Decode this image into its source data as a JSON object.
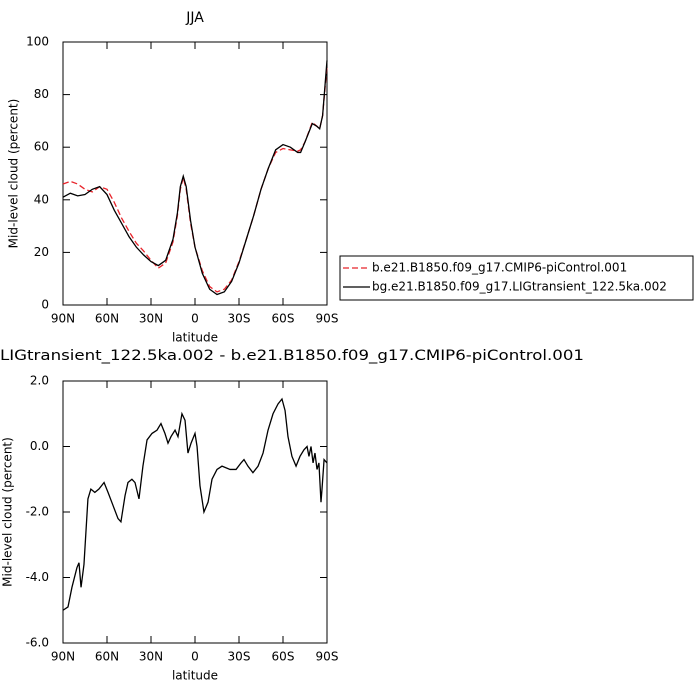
{
  "chart_data": [
    {
      "type": "line",
      "title": "JJA",
      "xlabel": "latitude",
      "ylabel": "Mid-level cloud (percent)",
      "x": [
        90,
        85,
        80,
        75,
        70,
        65,
        60,
        55,
        50,
        45,
        40,
        35,
        30,
        25,
        20,
        15,
        12,
        10,
        8,
        6,
        3,
        0,
        -5,
        -10,
        -15,
        -20,
        -25,
        -30,
        -35,
        -40,
        -45,
        -50,
        -55,
        -60,
        -65,
        -70,
        -72,
        -75,
        -80,
        -83,
        -85,
        -87,
        -90
      ],
      "series": [
        {
          "name": "b.e21.B1850.f09_g17.CMIP6-piControl.001",
          "color": "#e8242b",
          "dash": true,
          "values": [
            46,
            47,
            46,
            44,
            43,
            45,
            44,
            39,
            33,
            28,
            23.5,
            20.5,
            17,
            14,
            16,
            24,
            34,
            44,
            48.5,
            44,
            31,
            22,
            13,
            7,
            5,
            6,
            9.5,
            16.5,
            25,
            34,
            44,
            52,
            58,
            59.5,
            59,
            58.5,
            59,
            62,
            69.5,
            68,
            67,
            72,
            91
          ]
        },
        {
          "name": "bg.e21.B1850.f09_g17.LIGtransient_122.5ka.002",
          "color": "#000000",
          "dash": false,
          "values": [
            41,
            42.5,
            41.5,
            42,
            44,
            45,
            42,
            36,
            31,
            26,
            22,
            19,
            16.5,
            15,
            17,
            25,
            35,
            45,
            49,
            45,
            32,
            22,
            12,
            6,
            4,
            5,
            9,
            16,
            25,
            34,
            44,
            52,
            59,
            61,
            60,
            58,
            58,
            62,
            69,
            68,
            67,
            72,
            93
          ]
        }
      ],
      "xlim": [
        90,
        -90
      ],
      "xticks": [
        {
          "value": 90,
          "label": "90N"
        },
        {
          "value": 60,
          "label": "60N"
        },
        {
          "value": 30,
          "label": "30N"
        },
        0,
        {
          "value": -30,
          "label": "30S"
        },
        {
          "value": -60,
          "label": "60S"
        },
        {
          "value": -90,
          "label": "90S"
        }
      ],
      "ylim": [
        0,
        100
      ],
      "yticks": [
        0,
        20,
        40,
        60,
        80,
        100
      ],
      "legend": "right"
    },
    {
      "type": "line",
      "title": "LIGtransient_122.5ka.002 - b.e21.B1850.f09_g17.CMIP6-piControl.001",
      "xlabel": "latitude",
      "ylabel": "Mid-level cloud (percent)",
      "x": [
        90,
        86.6,
        83.9,
        80.5,
        79.1,
        77.7,
        75.7,
        73,
        71,
        68.3,
        65.5,
        62,
        59.3,
        55.9,
        52.5,
        50.5,
        47.7,
        45.7,
        43,
        40.9,
        38.2,
        35.5,
        32.7,
        29.3,
        25.9,
        23.2,
        20.5,
        18.4,
        16.4,
        13.6,
        11.6,
        8.9,
        6.8,
        4.8,
        2.7,
        0,
        -1.4,
        -3.4,
        -6.1,
        -8.9,
        -11.6,
        -15,
        -18.4,
        -23.9,
        -28,
        -31.4,
        -33.4,
        -36.1,
        -39.5,
        -43,
        -46.4,
        -49.8,
        -53.2,
        -56.6,
        -59.3,
        -61.4,
        -63.4,
        -66.1,
        -68.9,
        -71.6,
        -74.3,
        -76.4,
        -77.7,
        -79.1,
        -80.5,
        -81.8,
        -83.2,
        -84.5,
        -85.9,
        -86.6,
        -88,
        -90
      ],
      "series": [
        {
          "color": "#000000",
          "dash": false,
          "values": [
            -5,
            -4.9,
            -4.3,
            -3.7,
            -3.55,
            -4.3,
            -3.6,
            -1.6,
            -1.3,
            -1.4,
            -1.3,
            -1.1,
            -1.4,
            -1.8,
            -2.2,
            -2.3,
            -1.5,
            -1.1,
            -1,
            -1.1,
            -1.6,
            -0.6,
            0.2,
            0.4,
            0.5,
            0.7,
            0.4,
            0.1,
            0.3,
            0.5,
            0.3,
            1,
            0.8,
            -0.2,
            0.1,
            0.4,
            0,
            -1.2,
            -2,
            -1.7,
            -1,
            -0.7,
            -0.6,
            -0.7,
            -0.7,
            -0.5,
            -0.4,
            -0.6,
            -0.8,
            -0.6,
            -0.2,
            0.5,
            1,
            1.3,
            1.45,
            1.1,
            0.3,
            -0.3,
            -0.6,
            -0.3,
            -0.1,
            0,
            -0.3,
            0,
            -0.5,
            -0.2,
            -0.7,
            -0.5,
            -1.7,
            -1.3,
            -0.4,
            -0.5
          ]
        }
      ],
      "xlim": [
        90,
        -90
      ],
      "xticks": [
        {
          "value": 90,
          "label": "90N"
        },
        {
          "value": 60,
          "label": "60N"
        },
        {
          "value": 30,
          "label": "30N"
        },
        0,
        {
          "value": -30,
          "label": "30S"
        },
        {
          "value": -60,
          "label": "60S"
        },
        {
          "value": -90,
          "label": "90S"
        }
      ],
      "ylim": [
        -6,
        2
      ],
      "yticks": [
        {
          "value": -6,
          "label": "-6.0"
        },
        {
          "value": -4,
          "label": "-4.0"
        },
        {
          "value": -2,
          "label": "-2.0"
        },
        {
          "value": 0,
          "label": "0.0"
        },
        {
          "value": 2,
          "label": "2.0"
        }
      ]
    }
  ]
}
